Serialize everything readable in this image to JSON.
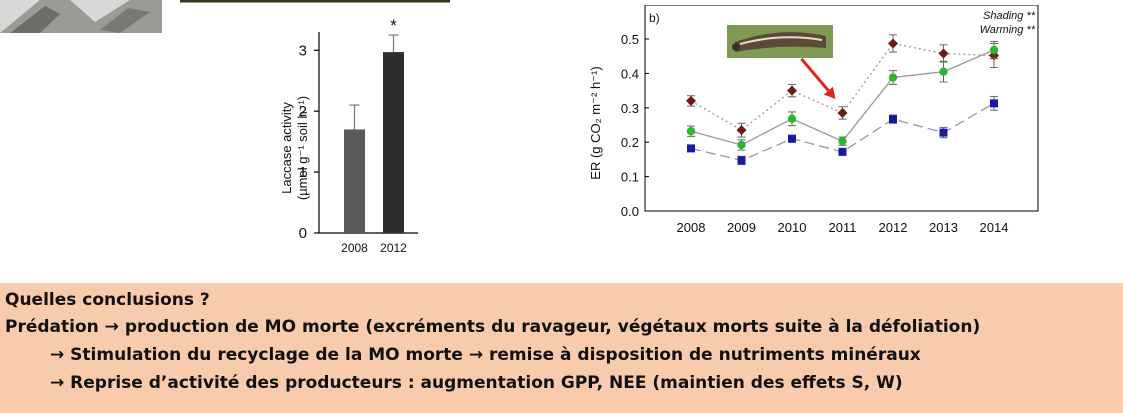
{
  "chart_data": [
    {
      "type": "bar",
      "categories": [
        "2008",
        "2012"
      ],
      "values": [
        1.7,
        2.97
      ],
      "errors": [
        0.4,
        0.28
      ],
      "colors": [
        "#5a5a5a",
        "#2e2e2e"
      ],
      "significance": [
        "",
        "*"
      ],
      "ylabel_line1": "Laccase activity",
      "ylabel_line2": "(µmol g⁻¹ soil h⁻¹)",
      "ylim": [
        0,
        3.3
      ],
      "yticks": [
        0,
        1,
        2,
        3
      ]
    },
    {
      "type": "line",
      "panel_label": "b)",
      "ylabel": "ER (g CO₂ m⁻² h⁻¹)",
      "x": [
        "2008",
        "2009",
        "2010",
        "2011",
        "2012",
        "2013",
        "2014"
      ],
      "ylim": [
        0,
        0.6
      ],
      "yticks": [
        "0.0",
        "0.1",
        "0.2",
        "0.3",
        "0.4",
        "0.5"
      ],
      "series": [
        {
          "values": [
            0.32,
            0.235,
            0.35,
            0.285,
            0.487,
            0.458,
            0.452
          ],
          "errors": [
            0.015,
            0.02,
            0.018,
            0.018,
            0.025,
            0.025,
            0.035
          ],
          "color": "#6b1c14",
          "marker": "diamond",
          "line": "dotted"
        },
        {
          "values": [
            0.232,
            0.192,
            0.268,
            0.203,
            0.388,
            0.405,
            0.468
          ],
          "errors": [
            0.015,
            0.015,
            0.02,
            0.012,
            0.02,
            0.03,
            0.025
          ],
          "color": "#2fb52f",
          "marker": "circle",
          "line": "solid"
        },
        {
          "values": [
            0.182,
            0.147,
            0.21,
            0.172,
            0.267,
            0.228,
            0.313
          ],
          "errors": [
            0.008,
            0.012,
            0.01,
            0.008,
            0.012,
            0.015,
            0.02
          ],
          "color": "#1a1aa0",
          "marker": "square",
          "line": "dashed"
        }
      ],
      "annotations": [
        "Shading **",
        "Warming **"
      ],
      "arrow_at": "2011"
    }
  ],
  "conclusions": {
    "heading": "Quelles conclusions ?",
    "line1": "Prédation →  production de MO morte (excréments du ravageur, végétaux morts suite à la défoliation)",
    "line2": "→ Stimulation du recyclage de la MO morte → remise à disposition de nutriments minéraux",
    "line3": "→ Reprise d’activité des producteurs : augmentation GPP, NEE (maintien des effets S, W)"
  }
}
